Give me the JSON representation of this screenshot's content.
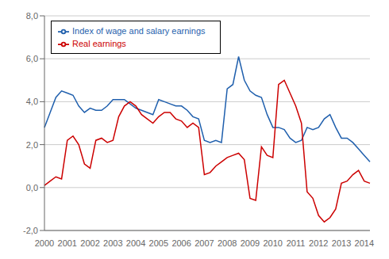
{
  "chart_data": {
    "type": "line",
    "categories": [
      "2000",
      null,
      null,
      null,
      "2001",
      null,
      null,
      null,
      "2002",
      null,
      null,
      null,
      "2003",
      null,
      null,
      null,
      "2004",
      null,
      null,
      null,
      "2005",
      null,
      null,
      null,
      "2006",
      null,
      null,
      null,
      "2007",
      null,
      null,
      null,
      "2008",
      null,
      null,
      null,
      "2009",
      null,
      null,
      null,
      "2010",
      null,
      null,
      null,
      "2011",
      null,
      null,
      null,
      "2012",
      null,
      null,
      null,
      "2013",
      null,
      null,
      null,
      "2014",
      null
    ],
    "series": [
      {
        "name": "Index of wage and salary earnings",
        "color": "#1f5fad",
        "values": [
          2.8,
          3.5,
          4.2,
          4.5,
          4.4,
          4.3,
          3.8,
          3.5,
          3.7,
          3.6,
          3.6,
          3.8,
          4.1,
          4.1,
          4.1,
          3.9,
          3.7,
          3.6,
          3.5,
          3.4,
          4.1,
          4.0,
          3.9,
          3.8,
          3.8,
          3.6,
          3.3,
          3.2,
          2.2,
          2.1,
          2.2,
          2.1,
          4.6,
          4.8,
          6.1,
          5.0,
          4.5,
          4.3,
          4.2,
          3.4,
          2.8,
          2.8,
          2.7,
          2.3,
          2.1,
          2.2,
          2.8,
          2.7,
          2.8,
          3.2,
          3.4,
          2.8,
          2.3,
          2.3,
          2.1,
          1.8,
          1.5,
          1.2
        ]
      },
      {
        "name": "Real earnings",
        "color": "#cc0000",
        "values": [
          0.1,
          0.3,
          0.5,
          0.4,
          2.2,
          2.4,
          2.0,
          1.1,
          0.9,
          2.2,
          2.3,
          2.1,
          2.2,
          3.3,
          3.8,
          4.0,
          3.8,
          3.4,
          3.2,
          3.0,
          3.3,
          3.5,
          3.5,
          3.2,
          3.1,
          2.8,
          3.0,
          2.8,
          0.6,
          0.7,
          1.0,
          1.2,
          1.4,
          1.5,
          1.6,
          1.3,
          -0.5,
          -0.6,
          1.9,
          1.5,
          1.4,
          4.8,
          5.0,
          4.4,
          3.8,
          3.0,
          -0.2,
          -0.5,
          -1.3,
          -1.6,
          -1.4,
          -1.0,
          0.2,
          0.3,
          0.6,
          0.8,
          0.3,
          0.2
        ]
      }
    ],
    "ylim": [
      -2.0,
      8.0
    ],
    "yticks": [
      {
        "value": -2.0,
        "label": "-2,0"
      },
      {
        "value": 0.0,
        "label": "0,0"
      },
      {
        "value": 2.0,
        "label": "2,0"
      },
      {
        "value": 4.0,
        "label": "4,0"
      },
      {
        "value": 6.0,
        "label": "6,0"
      },
      {
        "value": 8.0,
        "label": "8,0"
      }
    ],
    "grid": true,
    "legend": "upper left"
  }
}
